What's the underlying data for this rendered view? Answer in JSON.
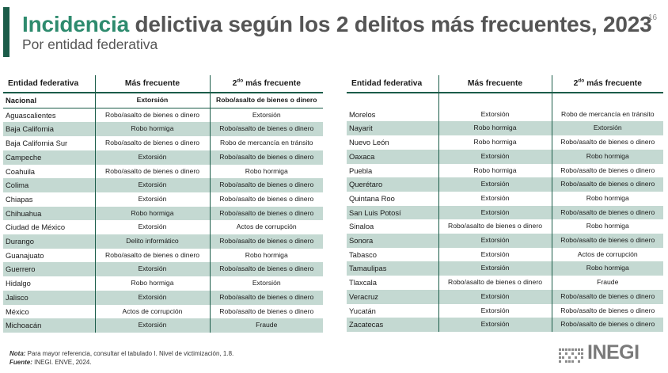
{
  "page": {
    "number": "16"
  },
  "title": {
    "highlight": "Incidencia",
    "rest": " delictiva según los 2 delitos más frecuentes, 2023"
  },
  "subtitle": "Por entidad federativa",
  "headers": {
    "entidad": "Entidad federativa",
    "frecuente": "Más frecuente",
    "segundo_num": "2",
    "segundo_sup": "do",
    "segundo_rest": " más frecuente"
  },
  "national": {
    "entidad": "Nacional",
    "frecuente": "Extorsión",
    "segundo": "Robo/asalto de bienes o dinero"
  },
  "left_rows": [
    {
      "entidad": "Aguascalientes",
      "frecuente": "Robo/asalto de bienes o dinero",
      "segundo": "Extorsión"
    },
    {
      "entidad": "Baja California",
      "frecuente": "Robo hormiga",
      "segundo": "Robo/asalto de bienes o dinero"
    },
    {
      "entidad": "Baja California Sur",
      "frecuente": "Robo/asalto de bienes o dinero",
      "segundo": "Robo de mercancía en tránsito"
    },
    {
      "entidad": "Campeche",
      "frecuente": "Extorsión",
      "segundo": "Robo/asalto de bienes o dinero"
    },
    {
      "entidad": "Coahuila",
      "frecuente": "Robo/asalto de bienes o dinero",
      "segundo": "Robo hormiga"
    },
    {
      "entidad": "Colima",
      "frecuente": "Extorsión",
      "segundo": "Robo/asalto de bienes o dinero"
    },
    {
      "entidad": "Chiapas",
      "frecuente": "Extorsión",
      "segundo": "Robo/asalto de bienes o dinero"
    },
    {
      "entidad": "Chihuahua",
      "frecuente": "Robo hormiga",
      "segundo": "Robo/asalto de bienes o dinero"
    },
    {
      "entidad": "Ciudad de México",
      "frecuente": "Extorsión",
      "segundo": "Actos de corrupción"
    },
    {
      "entidad": "Durango",
      "frecuente": "Delito informático",
      "segundo": "Robo/asalto de bienes o dinero"
    },
    {
      "entidad": "Guanajuato",
      "frecuente": "Robo/asalto de bienes o dinero",
      "segundo": "Robo hormiga"
    },
    {
      "entidad": "Guerrero",
      "frecuente": "Extorsión",
      "segundo": "Robo/asalto de bienes o dinero"
    },
    {
      "entidad": "Hidalgo",
      "frecuente": "Robo hormiga",
      "segundo": "Extorsión"
    },
    {
      "entidad": "Jalisco",
      "frecuente": "Extorsión",
      "segundo": "Robo/asalto de bienes o dinero"
    },
    {
      "entidad": "México",
      "frecuente": "Actos de corrupción",
      "segundo": "Robo/asalto de bienes o dinero"
    },
    {
      "entidad": "Michoacán",
      "frecuente": "Extorsión",
      "segundo": "Fraude"
    }
  ],
  "right_rows": [
    {
      "entidad": "Morelos",
      "frecuente": "Extorsión",
      "segundo": "Robo de mercancía en tránsito"
    },
    {
      "entidad": "Nayarit",
      "frecuente": "Robo hormiga",
      "segundo": "Extorsión"
    },
    {
      "entidad": "Nuevo León",
      "frecuente": "Robo hormiga",
      "segundo": "Robo/asalto de bienes o dinero"
    },
    {
      "entidad": "Oaxaca",
      "frecuente": "Extorsión",
      "segundo": "Robo hormiga"
    },
    {
      "entidad": "Puebla",
      "frecuente": "Robo hormiga",
      "segundo": "Robo/asalto de bienes o dinero"
    },
    {
      "entidad": "Querétaro",
      "frecuente": "Extorsión",
      "segundo": "Robo/asalto de bienes o dinero"
    },
    {
      "entidad": "Quintana Roo",
      "frecuente": "Extorsión",
      "segundo": "Robo hormiga"
    },
    {
      "entidad": "San Luis Potosí",
      "frecuente": "Extorsión",
      "segundo": "Robo/asalto de bienes o dinero"
    },
    {
      "entidad": "Sinaloa",
      "frecuente": "Robo/asalto de bienes o dinero",
      "segundo": "Robo hormiga"
    },
    {
      "entidad": "Sonora",
      "frecuente": "Extorsión",
      "segundo": "Robo/asalto de bienes o dinero"
    },
    {
      "entidad": "Tabasco",
      "frecuente": "Extorsión",
      "segundo": "Actos de corrupción"
    },
    {
      "entidad": "Tamaulipas",
      "frecuente": "Extorsión",
      "segundo": "Robo hormiga"
    },
    {
      "entidad": "Tlaxcala",
      "frecuente": "Robo/asalto de bienes o dinero",
      "segundo": "Fraude"
    },
    {
      "entidad": "Veracruz",
      "frecuente": "Extorsión",
      "segundo": "Robo/asalto de bienes o dinero"
    },
    {
      "entidad": "Yucatán",
      "frecuente": "Extorsión",
      "segundo": "Robo/asalto de bienes o dinero"
    },
    {
      "entidad": "Zacatecas",
      "frecuente": "Extorsión",
      "segundo": "Robo/asalto de bienes o dinero"
    }
  ],
  "notes": {
    "nota_label": "Nota:",
    "nota_text": " Para mayor referencia, consultar el tabulado I. Nivel de victimización, 1.8.",
    "fuente_label": "Fuente:",
    "fuente_text": " INEGI. ENVE, 2024."
  },
  "logo": {
    "text": "INEGI"
  },
  "colors": {
    "accent": "#1b5c49",
    "title_highlight": "#2e8b6e",
    "row_shade": "#c4d9d2",
    "title_text": "#555555"
  }
}
